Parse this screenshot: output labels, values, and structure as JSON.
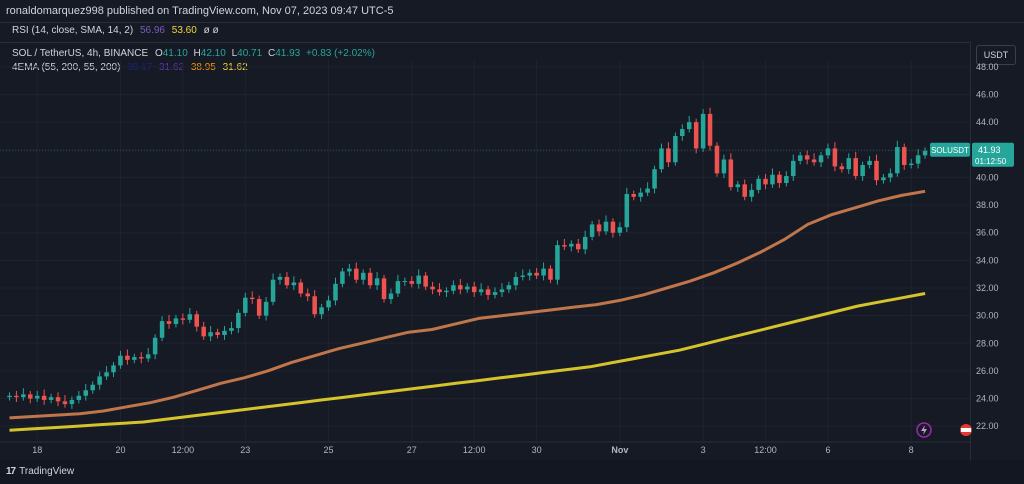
{
  "header": {
    "published_text": "ronaldomarquez998 published on TradingView.com, Nov 07, 2023 09:47 UTC-5"
  },
  "rsi_legend": {
    "label": "RSI (14, close, SMA, 14, 2)",
    "value1": "56.96",
    "value2": "53.60",
    "extra": "ø ø",
    "value1_color": "#7e57c2",
    "value2_color": "#f5d538"
  },
  "symbol_legend": {
    "symbol": "SOL / TetherUS, 4h, BINANCE",
    "o_label": "O",
    "o_value": "41.10",
    "h_label": "H",
    "h_value": "42.10",
    "l_label": "L",
    "l_value": "40.71",
    "c_label": "C",
    "c_value": "41.93",
    "change": "+0.83 (+2.02%)",
    "up_color": "#26a69a"
  },
  "ema_legend": {
    "label": "4EMA (55, 200, 55, 200)",
    "v1": "39.17",
    "v2": "31.62",
    "v3": "38.95",
    "v4": "31.62",
    "v1_color": "#1a237e",
    "v2_color": "#5e35b1",
    "v3_color": "#ff9800",
    "v4_color": "#f5d538"
  },
  "currency_button": "USDT",
  "price_tag": {
    "symbol": "SOLUSDT",
    "price": "41.93",
    "countdown": "01:12:50",
    "color": "#26a69a"
  },
  "footer": {
    "brand": "TradingView",
    "logo_mark": "17"
  },
  "chart_data": {
    "type": "candlestick",
    "ylim": [
      21,
      48.5
    ],
    "y_ticks": [
      "48.00",
      "46.00",
      "44.00",
      "42.00",
      "40.00",
      "38.00",
      "36.00",
      "34.00",
      "32.00",
      "30.00",
      "28.00",
      "26.00",
      "24.00",
      "22.00"
    ],
    "y_tick_values": [
      48,
      46,
      44,
      42,
      40,
      38,
      36,
      34,
      32,
      30,
      28,
      26,
      24,
      22
    ],
    "x_ticks": [
      {
        "label": "18",
        "bar": 4,
        "bold": false
      },
      {
        "label": "20",
        "bar": 16,
        "bold": false
      },
      {
        "label": "12:00",
        "bar": 25,
        "bold": false
      },
      {
        "label": "23",
        "bar": 34,
        "bold": false
      },
      {
        "label": "25",
        "bar": 46,
        "bold": false
      },
      {
        "label": "27",
        "bar": 58,
        "bold": false
      },
      {
        "label": "12:00",
        "bar": 67,
        "bold": false
      },
      {
        "label": "30",
        "bar": 76,
        "bold": false
      },
      {
        "label": "Nov",
        "bar": 88,
        "bold": true
      },
      {
        "label": "3",
        "bar": 100,
        "bold": false
      },
      {
        "label": "12:00",
        "bar": 109,
        "bold": false
      },
      {
        "label": "6",
        "bar": 118,
        "bold": false
      },
      {
        "label": "8",
        "bar": 130,
        "bold": false
      }
    ],
    "up_color": "#26a69a",
    "down_color": "#ef5350",
    "closes": [
      24.2,
      24.1,
      24.3,
      24.0,
      24.2,
      23.9,
      24.1,
      23.8,
      23.6,
      23.9,
      24.2,
      24.6,
      25.0,
      25.6,
      25.9,
      26.4,
      27.1,
      26.8,
      27.0,
      26.9,
      27.2,
      28.4,
      29.6,
      29.4,
      29.8,
      29.7,
      30.1,
      29.2,
      28.5,
      28.8,
      28.6,
      28.9,
      29.1,
      30.2,
      31.3,
      31.2,
      30.0,
      31.0,
      32.6,
      32.8,
      32.2,
      32.4,
      31.6,
      31.4,
      30.1,
      30.6,
      31.1,
      32.3,
      33.2,
      33.4,
      32.6,
      33.1,
      32.2,
      32.7,
      31.2,
      31.6,
      32.5,
      32.5,
      32.3,
      32.9,
      32.1,
      31.9,
      31.7,
      31.8,
      32.2,
      31.9,
      32.1,
      31.7,
      31.9,
      31.5,
      31.7,
      31.9,
      32.2,
      32.8,
      32.9,
      33.1,
      32.9,
      33.4,
      32.6,
      35.1,
      35.0,
      35.2,
      34.8,
      35.7,
      36.6,
      36.1,
      36.8,
      36.0,
      36.4,
      38.8,
      38.6,
      38.9,
      39.2,
      40.6,
      42.1,
      41.1,
      43.0,
      43.5,
      44.0,
      42.1,
      44.6,
      42.3,
      40.3,
      41.3,
      39.3,
      39.5,
      38.6,
      39.1,
      39.9,
      39.5,
      40.2,
      39.6,
      40.1,
      41.2,
      41.6,
      41.3,
      41.1,
      41.6,
      42.1,
      40.8,
      40.6,
      41.4,
      40.1,
      40.9,
      41.2,
      39.8,
      40.0,
      40.3,
      42.2,
      40.9,
      41.0,
      41.6,
      41.93
    ],
    "ema55": [
      22.6,
      22.7,
      22.8,
      22.9,
      23.1,
      23.4,
      23.7,
      24.1,
      24.6,
      25.1,
      25.5,
      26.0,
      26.6,
      27.1,
      27.6,
      28.0,
      28.4,
      28.8,
      29.0,
      29.4,
      29.8,
      30.0,
      30.2,
      30.4,
      30.6,
      30.8,
      31.1,
      31.5,
      32.0,
      32.5,
      33.1,
      33.8,
      34.6,
      35.5,
      36.6,
      37.3,
      37.8,
      38.3,
      38.7,
      39.0
    ],
    "ema200": [
      21.7,
      21.8,
      21.9,
      22.0,
      22.1,
      22.2,
      22.3,
      22.5,
      22.7,
      22.9,
      23.1,
      23.3,
      23.5,
      23.7,
      23.9,
      24.1,
      24.3,
      24.5,
      24.7,
      24.9,
      25.1,
      25.3,
      25.5,
      25.7,
      25.9,
      26.1,
      26.3,
      26.6,
      26.9,
      27.2,
      27.5,
      27.9,
      28.3,
      28.7,
      29.1,
      29.5,
      29.9,
      30.3,
      30.7,
      31.0,
      31.3,
      31.6
    ],
    "ema55_color": "#c0764a",
    "ema200_color": "#d4c32a",
    "grid": true
  }
}
